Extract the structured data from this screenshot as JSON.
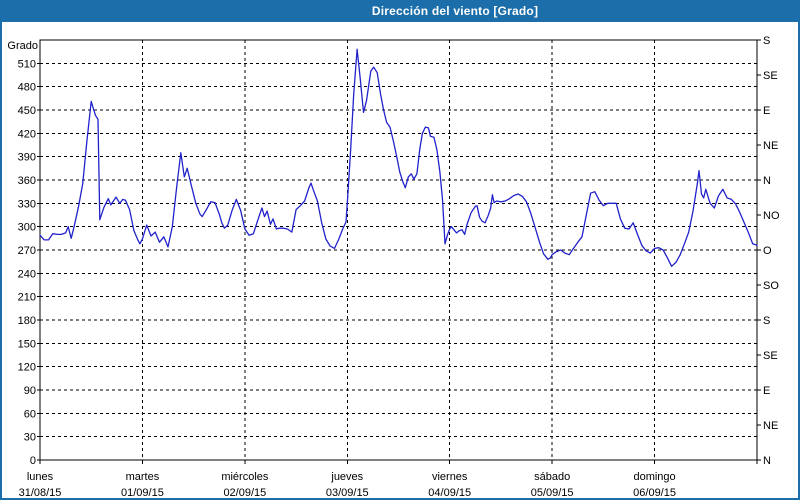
{
  "window": {
    "title": "Dirección del viento [Grado]"
  },
  "colors": {
    "titlebar_bg": "#1b6eaa",
    "frame_border": "#1b6eaa",
    "series_line": "#2222cc",
    "grid": "#000000",
    "text": "#000000",
    "background": "#ffffff"
  },
  "chart_data": {
    "type": "line",
    "title": "Dirección del viento [Grado]",
    "y_left_label": "Grado",
    "y_min": 0,
    "y_max": 540,
    "y_tick_step": 30,
    "y_left_ticks": [
      0,
      30,
      60,
      90,
      120,
      150,
      180,
      210,
      240,
      270,
      300,
      330,
      360,
      390,
      420,
      450,
      480,
      510
    ],
    "y_right_ticks": [
      {
        "value": 0,
        "label": "N"
      },
      {
        "value": 45,
        "label": "NE"
      },
      {
        "value": 90,
        "label": "E"
      },
      {
        "value": 135,
        "label": "SE"
      },
      {
        "value": 180,
        "label": "S"
      },
      {
        "value": 225,
        "label": "SO"
      },
      {
        "value": 270,
        "label": "O"
      },
      {
        "value": 315,
        "label": "NO"
      },
      {
        "value": 360,
        "label": "N"
      },
      {
        "value": 405,
        "label": "NE"
      },
      {
        "value": 450,
        "label": "E"
      },
      {
        "value": 495,
        "label": "SE"
      },
      {
        "value": 540,
        "label": "S"
      }
    ],
    "x_days": [
      {
        "name": "lunes",
        "date": "31/08/15"
      },
      {
        "name": "martes",
        "date": "01/09/15"
      },
      {
        "name": "miércoles",
        "date": "02/09/15"
      },
      {
        "name": "jueves",
        "date": "03/09/15"
      },
      {
        "name": "viernes",
        "date": "04/09/15"
      },
      {
        "name": "sábado",
        "date": "05/09/15"
      },
      {
        "name": "domingo",
        "date": "06/09/15"
      }
    ],
    "x_hours_total": 168,
    "grid_style": "dashed",
    "legend": "none",
    "series": [
      {
        "name": "Dirección del viento",
        "unit": "Grado",
        "points_hour_degree": [
          [
            0,
            289
          ],
          [
            1,
            283
          ],
          [
            2,
            283
          ],
          [
            3,
            291
          ],
          [
            4,
            290
          ],
          [
            5,
            290
          ],
          [
            6,
            292
          ],
          [
            6.6,
            300
          ],
          [
            7.3,
            285
          ],
          [
            8,
            300
          ],
          [
            9,
            325
          ],
          [
            10,
            355
          ],
          [
            11,
            410
          ],
          [
            12,
            461
          ],
          [
            13,
            443
          ],
          [
            13.6,
            438
          ],
          [
            14,
            309
          ],
          [
            15,
            325
          ],
          [
            16,
            336
          ],
          [
            16.6,
            328
          ],
          [
            17.8,
            338
          ],
          [
            18.7,
            330
          ],
          [
            19.4,
            335
          ],
          [
            20,
            334
          ],
          [
            21,
            322
          ],
          [
            22,
            295
          ],
          [
            23,
            282
          ],
          [
            23.4,
            278
          ],
          [
            24,
            284
          ],
          [
            25,
            302
          ],
          [
            26,
            288
          ],
          [
            27,
            293
          ],
          [
            28,
            280
          ],
          [
            29,
            287
          ],
          [
            30,
            274
          ],
          [
            31,
            300
          ],
          [
            32,
            350
          ],
          [
            33,
            395
          ],
          [
            33.8,
            364
          ],
          [
            34.5,
            375
          ],
          [
            35.5,
            352
          ],
          [
            36.5,
            330
          ],
          [
            37.5,
            316
          ],
          [
            38,
            313
          ],
          [
            39,
            322
          ],
          [
            40,
            332
          ],
          [
            41,
            331
          ],
          [
            42,
            316
          ],
          [
            42.6,
            305
          ],
          [
            43.2,
            298
          ],
          [
            44,
            302
          ],
          [
            45,
            321
          ],
          [
            46,
            335
          ],
          [
            47,
            321
          ],
          [
            48,
            297
          ],
          [
            49,
            289
          ],
          [
            50,
            291
          ],
          [
            51,
            308
          ],
          [
            52,
            324
          ],
          [
            52.6,
            313
          ],
          [
            53.2,
            320
          ],
          [
            54,
            303
          ],
          [
            54.6,
            310
          ],
          [
            55.4,
            297
          ],
          [
            56,
            298
          ],
          [
            57,
            298
          ],
          [
            58,
            297
          ],
          [
            59,
            293
          ],
          [
            60,
            322
          ],
          [
            61,
            327
          ],
          [
            62,
            333
          ],
          [
            63,
            350
          ],
          [
            63.5,
            356
          ],
          [
            64,
            348
          ],
          [
            65,
            333
          ],
          [
            66,
            305
          ],
          [
            67,
            284
          ],
          [
            68,
            275
          ],
          [
            69,
            272
          ],
          [
            70,
            284
          ],
          [
            71,
            298
          ],
          [
            71.7,
            306
          ],
          [
            72,
            330
          ],
          [
            72.8,
            400
          ],
          [
            73.5,
            470
          ],
          [
            74.3,
            528
          ],
          [
            75,
            492
          ],
          [
            75.8,
            447
          ],
          [
            76.5,
            462
          ],
          [
            77.5,
            500
          ],
          [
            78.2,
            505
          ],
          [
            79,
            498
          ],
          [
            79.8,
            470
          ],
          [
            80.5,
            450
          ],
          [
            81.2,
            434
          ],
          [
            82,
            428
          ],
          [
            82.8,
            410
          ],
          [
            83.5,
            392
          ],
          [
            84.3,
            370
          ],
          [
            85,
            358
          ],
          [
            85.6,
            350
          ],
          [
            86.3,
            364
          ],
          [
            87,
            368
          ],
          [
            87.6,
            361
          ],
          [
            88.3,
            368
          ],
          [
            89,
            400
          ],
          [
            89.6,
            420
          ],
          [
            90.3,
            428
          ],
          [
            91,
            427
          ],
          [
            91.5,
            416
          ],
          [
            92.3,
            415
          ],
          [
            93,
            399
          ],
          [
            93.7,
            370
          ],
          [
            94.3,
            335
          ],
          [
            94.9,
            278
          ],
          [
            95.5,
            290
          ],
          [
            96,
            297
          ],
          [
            96.4,
            300
          ],
          [
            97,
            296
          ],
          [
            97.6,
            292
          ],
          [
            98.3,
            295
          ],
          [
            98.9,
            296
          ],
          [
            99.5,
            290
          ],
          [
            100,
            302
          ],
          [
            101,
            318
          ],
          [
            102,
            326
          ],
          [
            102.4,
            327
          ],
          [
            103,
            312
          ],
          [
            103.6,
            307
          ],
          [
            104.3,
            305
          ],
          [
            105,
            314
          ],
          [
            105.6,
            324
          ],
          [
            106,
            341
          ],
          [
            106.4,
            331
          ],
          [
            107,
            333
          ],
          [
            108,
            332
          ],
          [
            109,
            333
          ],
          [
            110,
            336
          ],
          [
            111,
            340
          ],
          [
            112,
            342
          ],
          [
            113,
            339
          ],
          [
            114,
            332
          ],
          [
            115,
            317
          ],
          [
            116,
            299
          ],
          [
            117,
            281
          ],
          [
            118,
            265
          ],
          [
            119,
            258
          ],
          [
            119.6,
            260
          ],
          [
            120,
            264
          ],
          [
            121,
            268
          ],
          [
            122,
            270
          ],
          [
            123,
            266
          ],
          [
            124,
            264
          ],
          [
            125,
            272
          ],
          [
            126,
            280
          ],
          [
            127,
            287
          ],
          [
            128,
            315
          ],
          [
            129,
            343
          ],
          [
            130,
            345
          ],
          [
            131,
            334
          ],
          [
            132,
            327
          ],
          [
            133,
            330
          ],
          [
            134,
            330
          ],
          [
            135,
            330
          ],
          [
            136,
            310
          ],
          [
            137,
            298
          ],
          [
            138,
            297
          ],
          [
            139,
            305
          ],
          [
            140,
            290
          ],
          [
            141,
            276
          ],
          [
            142,
            269
          ],
          [
            143,
            266
          ],
          [
            144,
            272
          ],
          [
            145,
            273
          ],
          [
            146,
            270
          ],
          [
            147,
            260
          ],
          [
            148,
            249
          ],
          [
            149,
            254
          ],
          [
            150,
            264
          ],
          [
            151,
            278
          ],
          [
            152,
            293
          ],
          [
            153,
            320
          ],
          [
            154,
            355
          ],
          [
            154.4,
            372
          ],
          [
            155,
            342
          ],
          [
            155.5,
            337
          ],
          [
            156,
            348
          ],
          [
            157,
            330
          ],
          [
            158,
            324
          ],
          [
            159,
            340
          ],
          [
            160,
            348
          ],
          [
            161,
            337
          ],
          [
            162,
            335
          ],
          [
            163,
            329
          ],
          [
            164,
            318
          ],
          [
            165,
            305
          ],
          [
            166,
            292
          ],
          [
            167,
            278
          ],
          [
            168,
            276
          ]
        ]
      }
    ]
  }
}
